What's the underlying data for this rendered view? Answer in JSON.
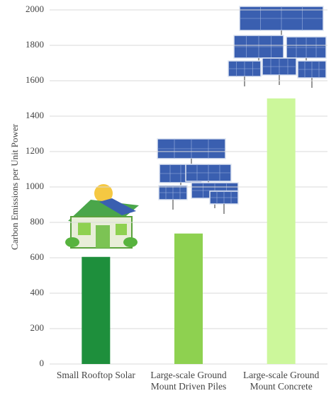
{
  "chart_data": {
    "type": "bar",
    "y_label": "Carbon Emissions per Unit Power",
    "categories": [
      "Small Rooftop Solar",
      "Large-scale Ground Mount Driven Piles",
      "Large-scale Ground Mount Concrete"
    ],
    "values": [
      605,
      737,
      1500
    ],
    "colors": [
      "#1e8f3c",
      "#8ed150",
      "#ccf79b"
    ],
    "ylim": [
      0,
      2000
    ],
    "yticks": [
      0,
      200,
      400,
      600,
      800,
      1000,
      1200,
      1400,
      1600,
      1800,
      2000
    ],
    "grid": true
  }
}
